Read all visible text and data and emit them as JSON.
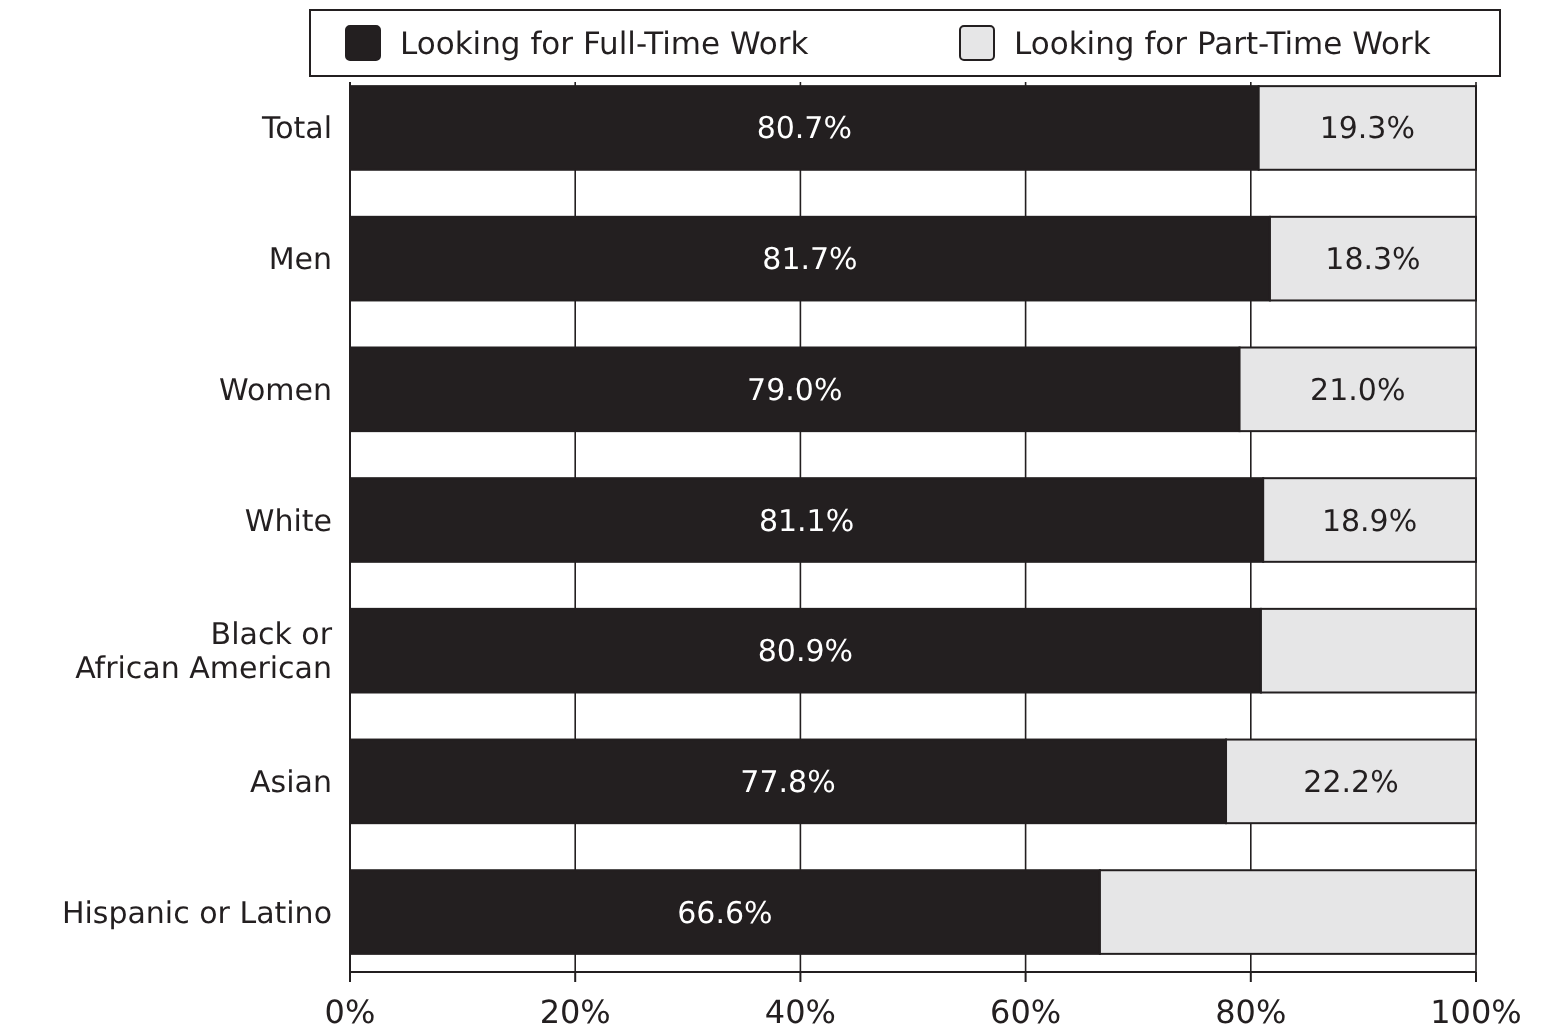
{
  "chart_data": {
    "type": "bar",
    "orientation": "horizontal",
    "stacked": true,
    "categories": [
      "Total",
      "Men",
      "Women",
      "White",
      "Black or\nAfrican American",
      "Asian",
      "Hispanic or Latino"
    ],
    "series": [
      {
        "name": "Looking for Full-Time Work",
        "color": "#231f20",
        "values": [
          80.7,
          81.7,
          79.0,
          81.1,
          80.9,
          77.8,
          66.6
        ],
        "value_labels": [
          "80.7%",
          "81.7%",
          "79.0%",
          "81.1%",
          "80.9%",
          "77.8%",
          "66.6%"
        ]
      },
      {
        "name": "Looking for Part-Time Work",
        "color": "#e6e6e7",
        "values": [
          19.3,
          18.3,
          21.0,
          18.9,
          19.1,
          22.2,
          33.4
        ],
        "value_labels": [
          "19.3%",
          "18.3%",
          "21.0%",
          "18.9%",
          null,
          "22.2%",
          null
        ]
      }
    ],
    "xlim": [
      0,
      100
    ],
    "xticks": [
      {
        "value": 0,
        "label": "0%"
      },
      {
        "value": 20,
        "label": "20%"
      },
      {
        "value": 40,
        "label": "40%"
      },
      {
        "value": 60,
        "label": "60%"
      },
      {
        "value": 80,
        "label": "80%"
      },
      {
        "value": 100,
        "label": "100%"
      }
    ],
    "grid": "x",
    "legend": "top"
  }
}
